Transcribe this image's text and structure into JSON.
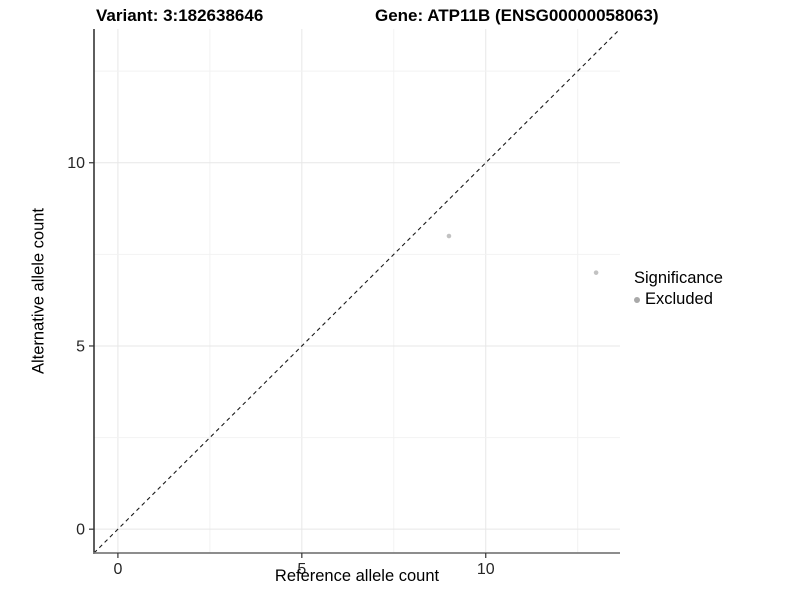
{
  "titles": {
    "variant": "Variant: 3:182638646",
    "gene": "Gene: ATP11B (ENSG00000058063)"
  },
  "chart_data": {
    "type": "scatter",
    "xlabel": "Reference allele count",
    "ylabel": "Alternative allele count",
    "xlim": [
      -0.65,
      13.65
    ],
    "ylim": [
      -0.65,
      13.65
    ],
    "xticks": [
      0,
      5,
      10
    ],
    "yticks": [
      0,
      5,
      10
    ],
    "minor_grid_step": 2.5,
    "grid": true,
    "points": [
      {
        "x": 9,
        "y": 8,
        "significance": "Excluded"
      },
      {
        "x": 13,
        "y": 7,
        "significance": "Excluded"
      }
    ],
    "reference_line": {
      "equation": "y = x",
      "style": "dashed",
      "color": "#1a1a1a"
    },
    "legend": {
      "title": "Significance",
      "position": "right",
      "entries": [
        {
          "label": "Excluded",
          "color": "#bdbdbd"
        }
      ]
    }
  },
  "colors": {
    "point": "#c2c2c2",
    "legend_dot": "#a9a9a9",
    "major_grid": "#e7e7e7",
    "minor_grid": "#f2f2f2",
    "axis_line_y": "#1a1a1a",
    "axis_line_x": "#7d7d7d",
    "tick_mark": "#333333",
    "background": "#ffffff"
  }
}
